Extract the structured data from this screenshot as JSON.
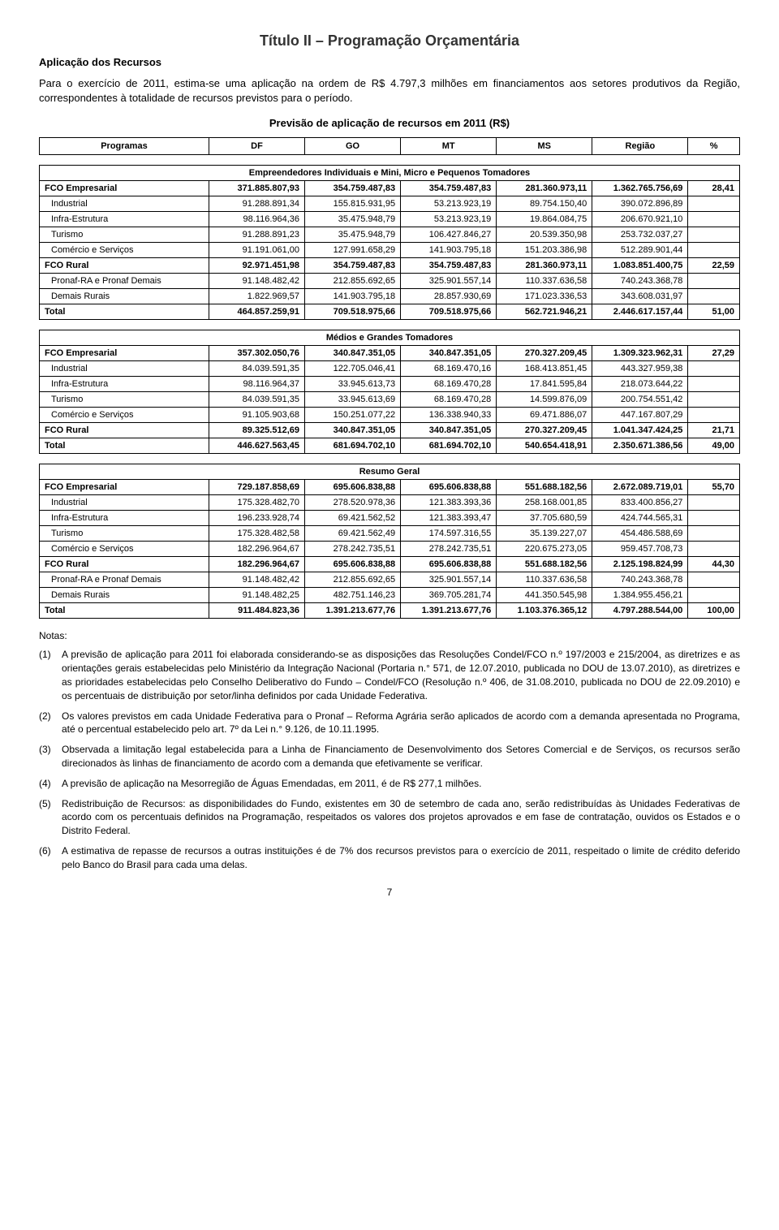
{
  "header_title": "Título II – Programação Orçamentária",
  "section_title": "Aplicação dos Recursos",
  "intro": "Para o exercício de 2011, estima-se uma aplicação na ordem de R$ 4.797,3 milhões em financiamentos aos setores produtivos da Região, correspondentes à totalidade de recursos previstos para o período.",
  "table_title": "Previsão de aplicação de recursos em 2011 (R$)",
  "header_row": {
    "c0": "Programas",
    "c1": "DF",
    "c2": "GO",
    "c3": "MT",
    "c4": "MS",
    "c5": "Região",
    "c6": "%"
  },
  "group1_title": "Empreendedores Individuais e Mini, Micro e Pequenos Tomadores",
  "group1": [
    {
      "label": "FCO Empresarial",
      "v": [
        "371.885.807,93",
        "354.759.487,83",
        "354.759.487,83",
        "281.360.973,11",
        "1.362.765.756,69",
        "28,41"
      ],
      "bold": true,
      "indent": false
    },
    {
      "label": "Industrial",
      "v": [
        "91.288.891,34",
        "155.815.931,95",
        "53.213.923,19",
        "89.754.150,40",
        "390.072.896,89",
        ""
      ],
      "bold": false,
      "indent": true
    },
    {
      "label": "Infra-Estrutura",
      "v": [
        "98.116.964,36",
        "35.475.948,79",
        "53.213.923,19",
        "19.864.084,75",
        "206.670.921,10",
        ""
      ],
      "bold": false,
      "indent": true
    },
    {
      "label": "Turismo",
      "v": [
        "91.288.891,23",
        "35.475.948,79",
        "106.427.846,27",
        "20.539.350,98",
        "253.732.037,27",
        ""
      ],
      "bold": false,
      "indent": true
    },
    {
      "label": "Comércio e Serviços",
      "v": [
        "91.191.061,00",
        "127.991.658,29",
        "141.903.795,18",
        "151.203.386,98",
        "512.289.901,44",
        ""
      ],
      "bold": false,
      "indent": true
    },
    {
      "label": "FCO Rural",
      "v": [
        "92.971.451,98",
        "354.759.487,83",
        "354.759.487,83",
        "281.360.973,11",
        "1.083.851.400,75",
        "22,59"
      ],
      "bold": true,
      "indent": false
    },
    {
      "label": "Pronaf-RA e Pronaf Demais",
      "v": [
        "91.148.482,42",
        "212.855.692,65",
        "325.901.557,14",
        "110.337.636,58",
        "740.243.368,78",
        ""
      ],
      "bold": false,
      "indent": true
    },
    {
      "label": "Demais Rurais",
      "v": [
        "1.822.969,57",
        "141.903.795,18",
        "28.857.930,69",
        "171.023.336,53",
        "343.608.031,97",
        ""
      ],
      "bold": false,
      "indent": true
    },
    {
      "label": "Total",
      "v": [
        "464.857.259,91",
        "709.518.975,66",
        "709.518.975,66",
        "562.721.946,21",
        "2.446.617.157,44",
        "51,00"
      ],
      "bold": true,
      "indent": false
    }
  ],
  "group2_title": "Médios e Grandes Tomadores",
  "group2": [
    {
      "label": "FCO Empresarial",
      "v": [
        "357.302.050,76",
        "340.847.351,05",
        "340.847.351,05",
        "270.327.209,45",
        "1.309.323.962,31",
        "27,29"
      ],
      "bold": true,
      "indent": false
    },
    {
      "label": "Industrial",
      "v": [
        "84.039.591,35",
        "122.705.046,41",
        "68.169.470,16",
        "168.413.851,45",
        "443.327.959,38",
        ""
      ],
      "bold": false,
      "indent": true
    },
    {
      "label": "Infra-Estrutura",
      "v": [
        "98.116.964,37",
        "33.945.613,73",
        "68.169.470,28",
        "17.841.595,84",
        "218.073.644,22",
        ""
      ],
      "bold": false,
      "indent": true
    },
    {
      "label": "Turismo",
      "v": [
        "84.039.591,35",
        "33.945.613,69",
        "68.169.470,28",
        "14.599.876,09",
        "200.754.551,42",
        ""
      ],
      "bold": false,
      "indent": true
    },
    {
      "label": "Comércio e Serviços",
      "v": [
        "91.105.903,68",
        "150.251.077,22",
        "136.338.940,33",
        "69.471.886,07",
        "447.167.807,29",
        ""
      ],
      "bold": false,
      "indent": true
    },
    {
      "label": "FCO Rural",
      "v": [
        "89.325.512,69",
        "340.847.351,05",
        "340.847.351,05",
        "270.327.209,45",
        "1.041.347.424,25",
        "21,71"
      ],
      "bold": true,
      "indent": false
    },
    {
      "label": "Total",
      "v": [
        "446.627.563,45",
        "681.694.702,10",
        "681.694.702,10",
        "540.654.418,91",
        "2.350.671.386,56",
        "49,00"
      ],
      "bold": true,
      "indent": false
    }
  ],
  "group3_title": "Resumo Geral",
  "group3": [
    {
      "label": "FCO Empresarial",
      "v": [
        "729.187.858,69",
        "695.606.838,88",
        "695.606.838,88",
        "551.688.182,56",
        "2.672.089.719,01",
        "55,70"
      ],
      "bold": true,
      "indent": false
    },
    {
      "label": "Industrial",
      "v": [
        "175.328.482,70",
        "278.520.978,36",
        "121.383.393,36",
        "258.168.001,85",
        "833.400.856,27",
        ""
      ],
      "bold": false,
      "indent": true
    },
    {
      "label": "Infra-Estrutura",
      "v": [
        "196.233.928,74",
        "69.421.562,52",
        "121.383.393,47",
        "37.705.680,59",
        "424.744.565,31",
        ""
      ],
      "bold": false,
      "indent": true
    },
    {
      "label": "Turismo",
      "v": [
        "175.328.482,58",
        "69.421.562,49",
        "174.597.316,55",
        "35.139.227,07",
        "454.486.588,69",
        ""
      ],
      "bold": false,
      "indent": true
    },
    {
      "label": "Comércio e Serviços",
      "v": [
        "182.296.964,67",
        "278.242.735,51",
        "278.242.735,51",
        "220.675.273,05",
        "959.457.708,73",
        ""
      ],
      "bold": false,
      "indent": true
    },
    {
      "label": "FCO Rural",
      "v": [
        "182.296.964,67",
        "695.606.838,88",
        "695.606.838,88",
        "551.688.182,56",
        "2.125.198.824,99",
        "44,30"
      ],
      "bold": true,
      "indent": false
    },
    {
      "label": "Pronaf-RA e Pronaf Demais",
      "v": [
        "91.148.482,42",
        "212.855.692,65",
        "325.901.557,14",
        "110.337.636,58",
        "740.243.368,78",
        ""
      ],
      "bold": false,
      "indent": true
    },
    {
      "label": "Demais Rurais",
      "v": [
        "91.148.482,25",
        "482.751.146,23",
        "369.705.281,74",
        "441.350.545,98",
        "1.384.955.456,21",
        ""
      ],
      "bold": false,
      "indent": true
    },
    {
      "label": "Total",
      "v": [
        "911.484.823,36",
        "1.391.213.677,76",
        "1.391.213.677,76",
        "1.103.376.365,12",
        "4.797.288.544,00",
        "100,00"
      ],
      "bold": true,
      "indent": false
    }
  ],
  "notes_heading": "Notas:",
  "notes": [
    {
      "num": "(1)",
      "text": "A previsão de aplicação para 2011 foi elaborada considerando-se as disposições das Resoluções Condel/FCO n.º 197/2003 e 215/2004, as diretrizes e as orientações gerais estabelecidas pelo Ministério da Integração Nacional (Portaria n.° 571, de 12.07.2010, publicada no DOU de 13.07.2010), as diretrizes e as prioridades estabelecidas pelo Conselho Deliberativo do Fundo – Condel/FCO (Resolução n.º 406, de 31.08.2010, publicada no DOU de 22.09.2010) e os percentuais de distribuição por setor/linha definidos por cada Unidade Federativa."
    },
    {
      "num": "(2)",
      "text": "Os valores previstos em cada Unidade Federativa para o Pronaf – Reforma Agrária serão aplicados de acordo com a demanda apresentada no Programa, até o percentual estabelecido pelo art. 7º da Lei n.° 9.126, de 10.11.1995."
    },
    {
      "num": "(3)",
      "text": "Observada a limitação legal estabelecida para a Linha de Financiamento de Desenvolvimento dos Setores Comercial e de Serviços, os recursos serão direcionados às linhas de financiamento de acordo com a demanda que efetivamente se verificar."
    },
    {
      "num": "(4)",
      "text": "A previsão de aplicação na Mesorregião de Águas Emendadas, em 2011, é de R$ 277,1 milhões."
    },
    {
      "num": "(5)",
      "text": "Redistribuição de Recursos: as disponibilidades do Fundo, existentes em 30 de setembro de cada ano, serão redistribuídas às Unidades Federativas de acordo com os percentuais definidos na Programação, respeitados os valores dos projetos aprovados e em fase de contratação, ouvidos os Estados e o Distrito Federal."
    },
    {
      "num": "(6)",
      "text": "A estimativa de repasse de recursos a outras instituições é de 7% dos recursos previstos para o exercício de 2011, respeitado o limite de crédito deferido pelo Banco do Brasil para cada uma delas."
    }
  ],
  "page_number": "7"
}
